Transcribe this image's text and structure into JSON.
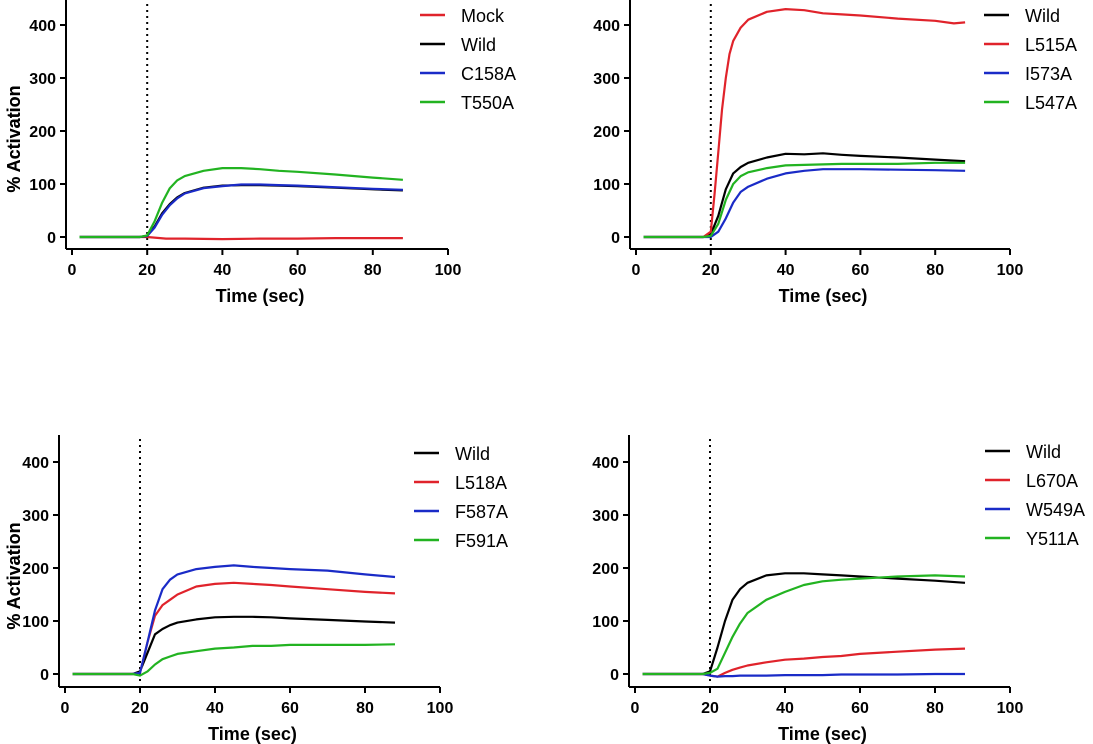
{
  "chart_data": [
    {
      "type": "line",
      "xlabel": "Time (sec)",
      "ylabel": "% Activation",
      "xlim": [
        0,
        100
      ],
      "ylim": [
        -20,
        450
      ],
      "xticks": [
        0,
        20,
        40,
        60,
        80,
        100
      ],
      "yticks": [
        0,
        100,
        200,
        300,
        400
      ],
      "stimulus_x": 20,
      "legend_position": "top-right",
      "series": [
        {
          "name": "Mock",
          "color": "#e0232b",
          "x": [
            2,
            10,
            18,
            20,
            25,
            30,
            40,
            50,
            60,
            70,
            80,
            88
          ],
          "y": [
            0,
            0,
            0,
            0,
            -3,
            -3,
            -4,
            -3,
            -3,
            -2,
            -2,
            -2
          ]
        },
        {
          "name": "Wild",
          "color": "#000000",
          "x": [
            2,
            10,
            18,
            20,
            22,
            24,
            26,
            28,
            30,
            35,
            40,
            45,
            50,
            55,
            60,
            70,
            80,
            88
          ],
          "y": [
            0,
            0,
            0,
            2,
            20,
            45,
            62,
            75,
            83,
            93,
            97,
            98,
            98,
            97,
            96,
            93,
            90,
            88
          ]
        },
        {
          "name": "C158A",
          "color": "#1a2bc7",
          "x": [
            2,
            10,
            18,
            20,
            22,
            24,
            26,
            28,
            30,
            35,
            40,
            45,
            50,
            55,
            60,
            70,
            80,
            88
          ],
          "y": [
            0,
            0,
            0,
            2,
            18,
            42,
            60,
            73,
            82,
            92,
            96,
            99,
            99,
            98,
            97,
            94,
            91,
            89
          ]
        },
        {
          "name": "T550A",
          "color": "#22b321",
          "x": [
            2,
            10,
            18,
            20,
            22,
            24,
            26,
            28,
            30,
            35,
            40,
            45,
            50,
            55,
            60,
            70,
            80,
            88
          ],
          "y": [
            0,
            0,
            0,
            3,
            30,
            65,
            92,
            107,
            115,
            125,
            130,
            130,
            128,
            125,
            123,
            118,
            112,
            108
          ]
        }
      ]
    },
    {
      "type": "line",
      "xlabel": "Time (sec)",
      "ylabel": "% Activation",
      "xlim": [
        0,
        100
      ],
      "ylim": [
        -20,
        450
      ],
      "xticks": [
        0,
        20,
        40,
        60,
        80,
        100
      ],
      "yticks": [
        0,
        100,
        200,
        300,
        400
      ],
      "stimulus_x": 20,
      "legend_position": "top-right",
      "series": [
        {
          "name": "Wild",
          "color": "#000000",
          "x": [
            2,
            10,
            18,
            20,
            22,
            24,
            26,
            28,
            30,
            35,
            40,
            45,
            50,
            55,
            60,
            70,
            80,
            88
          ],
          "y": [
            0,
            0,
            0,
            5,
            40,
            90,
            120,
            132,
            140,
            150,
            157,
            156,
            158,
            155,
            153,
            150,
            146,
            143
          ]
        },
        {
          "name": "L515A",
          "color": "#e0232b",
          "x": [
            2,
            10,
            18,
            20,
            21,
            22,
            23,
            24,
            25,
            26,
            28,
            30,
            35,
            40,
            45,
            50,
            55,
            60,
            70,
            80,
            85,
            88
          ],
          "y": [
            0,
            0,
            0,
            10,
            80,
            160,
            240,
            300,
            345,
            370,
            395,
            410,
            425,
            430,
            428,
            422,
            420,
            418,
            412,
            408,
            403,
            405
          ]
        },
        {
          "name": "I573A",
          "color": "#1a2bc7",
          "x": [
            2,
            10,
            18,
            20,
            22,
            24,
            26,
            28,
            30,
            35,
            40,
            45,
            50,
            55,
            60,
            70,
            80,
            88
          ],
          "y": [
            0,
            0,
            0,
            0,
            10,
            35,
            65,
            85,
            95,
            110,
            120,
            125,
            128,
            128,
            128,
            127,
            126,
            125
          ]
        },
        {
          "name": "L547A",
          "color": "#22b321",
          "x": [
            2,
            10,
            18,
            20,
            22,
            24,
            26,
            28,
            30,
            35,
            40,
            45,
            50,
            55,
            60,
            70,
            80,
            88
          ],
          "y": [
            0,
            0,
            0,
            2,
            25,
            70,
            100,
            115,
            122,
            130,
            135,
            136,
            137,
            138,
            138,
            138,
            140,
            140
          ]
        }
      ]
    },
    {
      "type": "line",
      "xlabel": "Time (sec)",
      "ylabel": "% Activation",
      "xlim": [
        0,
        100
      ],
      "ylim": [
        -20,
        450
      ],
      "xticks": [
        0,
        20,
        40,
        60,
        80,
        100
      ],
      "yticks": [
        0,
        100,
        200,
        300,
        400
      ],
      "stimulus_x": 20,
      "legend_position": "top-right",
      "series": [
        {
          "name": "Wild",
          "color": "#000000",
          "x": [
            2,
            10,
            18,
            20,
            22,
            24,
            26,
            28,
            30,
            35,
            40,
            45,
            50,
            55,
            60,
            70,
            80,
            88
          ],
          "y": [
            0,
            0,
            0,
            5,
            40,
            75,
            85,
            92,
            97,
            103,
            107,
            108,
            108,
            107,
            105,
            102,
            99,
            97
          ]
        },
        {
          "name": "L518A",
          "color": "#e0232b",
          "x": [
            2,
            10,
            18,
            20,
            22,
            24,
            26,
            28,
            30,
            35,
            40,
            45,
            50,
            55,
            60,
            70,
            80,
            88
          ],
          "y": [
            0,
            0,
            0,
            2,
            60,
            110,
            130,
            140,
            150,
            165,
            170,
            172,
            170,
            168,
            165,
            160,
            155,
            152
          ]
        },
        {
          "name": "F587A",
          "color": "#1a2bc7",
          "x": [
            2,
            10,
            18,
            20,
            22,
            24,
            26,
            28,
            30,
            35,
            40,
            45,
            50,
            55,
            60,
            70,
            80,
            88
          ],
          "y": [
            0,
            0,
            0,
            2,
            60,
            120,
            160,
            178,
            188,
            198,
            202,
            205,
            202,
            200,
            198,
            195,
            188,
            183
          ]
        },
        {
          "name": "F591A",
          "color": "#22b321",
          "x": [
            2,
            10,
            18,
            20,
            22,
            24,
            26,
            28,
            30,
            35,
            40,
            45,
            50,
            55,
            60,
            70,
            80,
            88
          ],
          "y": [
            0,
            0,
            0,
            -3,
            5,
            18,
            28,
            33,
            38,
            43,
            48,
            50,
            53,
            53,
            55,
            55,
            55,
            56
          ]
        }
      ]
    },
    {
      "type": "line",
      "xlabel": "Time (sec)",
      "ylabel": "% Activation",
      "xlim": [
        0,
        100
      ],
      "ylim": [
        -20,
        450
      ],
      "xticks": [
        0,
        20,
        40,
        60,
        80,
        100
      ],
      "yticks": [
        0,
        100,
        200,
        300,
        400
      ],
      "stimulus_x": 20,
      "legend_position": "top-right",
      "series": [
        {
          "name": "Wild",
          "color": "#000000",
          "x": [
            2,
            10,
            18,
            20,
            22,
            24,
            26,
            28,
            30,
            35,
            40,
            45,
            50,
            55,
            60,
            70,
            80,
            88
          ],
          "y": [
            0,
            0,
            0,
            5,
            50,
            100,
            140,
            160,
            172,
            186,
            190,
            190,
            188,
            186,
            184,
            180,
            176,
            172
          ]
        },
        {
          "name": "L670A",
          "color": "#e0232b",
          "x": [
            2,
            10,
            18,
            20,
            22,
            24,
            26,
            28,
            30,
            35,
            40,
            45,
            50,
            55,
            60,
            70,
            80,
            88
          ],
          "y": [
            0,
            0,
            0,
            -3,
            -5,
            2,
            8,
            12,
            16,
            22,
            27,
            29,
            32,
            34,
            38,
            42,
            46,
            48
          ]
        },
        {
          "name": "W549A",
          "color": "#1a2bc7",
          "x": [
            2,
            10,
            18,
            20,
            22,
            24,
            26,
            28,
            30,
            35,
            40,
            45,
            50,
            55,
            60,
            70,
            80,
            88
          ],
          "y": [
            0,
            0,
            0,
            -3,
            -5,
            -4,
            -4,
            -3,
            -3,
            -3,
            -2,
            -2,
            -2,
            -1,
            -1,
            -1,
            0,
            0
          ]
        },
        {
          "name": "Y511A",
          "color": "#22b321",
          "x": [
            2,
            10,
            18,
            20,
            22,
            24,
            26,
            28,
            30,
            35,
            40,
            45,
            50,
            55,
            60,
            70,
            80,
            88
          ],
          "y": [
            0,
            0,
            0,
            2,
            10,
            40,
            70,
            95,
            115,
            140,
            155,
            168,
            175,
            178,
            180,
            184,
            186,
            184
          ]
        }
      ]
    }
  ]
}
